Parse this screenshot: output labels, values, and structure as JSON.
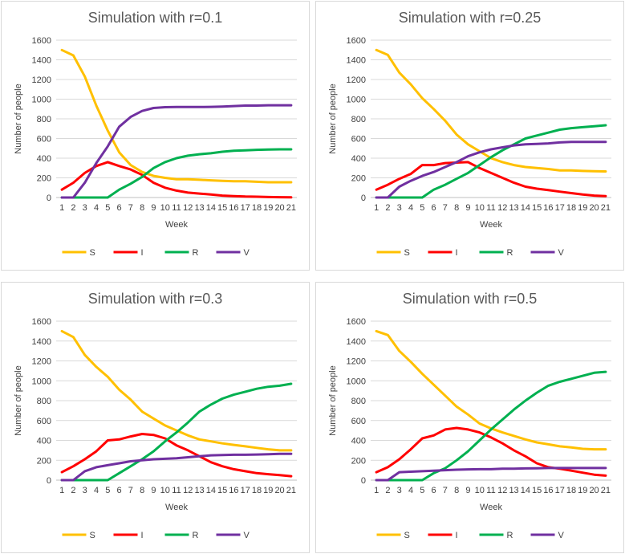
{
  "colors": {
    "S": "#ffc000",
    "I": "#ff0000",
    "R": "#00b050",
    "V": "#7030a0",
    "grid": "#d9d9d9",
    "axis": "#bfbfbf"
  },
  "chart_data": [
    {
      "type": "line",
      "title": "Simulation with r=0.1",
      "xlabel": "Week",
      "ylabel": "Number of people",
      "ylim": [
        0,
        1600
      ],
      "yticks": [
        "0",
        "200",
        "400",
        "600",
        "800",
        "1000",
        "1200",
        "1400",
        "1600"
      ],
      "x": [
        "1",
        "2",
        "3",
        "4",
        "5",
        "6",
        "7",
        "8",
        "9",
        "10",
        "11",
        "12",
        "13",
        "14",
        "15",
        "16",
        "17",
        "18",
        "19",
        "20",
        "21"
      ],
      "legend": "bottom",
      "grid": true,
      "series": [
        {
          "name": "S",
          "values": [
            1500,
            1445,
            1230,
            935,
            680,
            460,
            330,
            260,
            220,
            200,
            185,
            185,
            180,
            175,
            170,
            165,
            165,
            160,
            155,
            155,
            155
          ]
        },
        {
          "name": "I",
          "values": [
            80,
            150,
            250,
            320,
            360,
            320,
            285,
            230,
            150,
            100,
            70,
            50,
            40,
            30,
            20,
            15,
            10,
            8,
            5,
            3,
            2
          ]
        },
        {
          "name": "R",
          "values": [
            0,
            0,
            0,
            0,
            0,
            80,
            140,
            210,
            300,
            360,
            400,
            425,
            440,
            450,
            465,
            475,
            480,
            485,
            488,
            490,
            490
          ]
        },
        {
          "name": "V",
          "values": [
            0,
            0,
            150,
            350,
            520,
            720,
            820,
            880,
            910,
            918,
            920,
            920,
            920,
            922,
            925,
            930,
            935,
            935,
            938,
            938,
            938
          ]
        }
      ]
    },
    {
      "type": "line",
      "title": "Simulation with r=0.25",
      "xlabel": "Week",
      "ylabel": "Number of people",
      "ylim": [
        0,
        1600
      ],
      "yticks": [
        "0",
        "200",
        "400",
        "600",
        "800",
        "1000",
        "1200",
        "1400",
        "1600"
      ],
      "x": [
        "1",
        "2",
        "3",
        "4",
        "5",
        "6",
        "7",
        "8",
        "9",
        "10",
        "11",
        "12",
        "13",
        "14",
        "15",
        "16",
        "17",
        "18",
        "19",
        "20",
        "21"
      ],
      "legend": "bottom",
      "grid": true,
      "series": [
        {
          "name": "S",
          "values": [
            1500,
            1450,
            1270,
            1150,
            1010,
            900,
            780,
            640,
            540,
            470,
            400,
            360,
            330,
            310,
            300,
            290,
            275,
            275,
            270,
            268,
            265
          ]
        },
        {
          "name": "I",
          "values": [
            80,
            130,
            190,
            240,
            330,
            330,
            350,
            355,
            360,
            300,
            250,
            200,
            150,
            110,
            90,
            75,
            60,
            45,
            30,
            20,
            15
          ]
        },
        {
          "name": "R",
          "values": [
            0,
            0,
            0,
            0,
            0,
            80,
            130,
            190,
            250,
            330,
            410,
            480,
            540,
            600,
            630,
            660,
            690,
            705,
            715,
            725,
            735
          ]
        },
        {
          "name": "V",
          "values": [
            0,
            0,
            110,
            170,
            220,
            260,
            310,
            360,
            420,
            460,
            490,
            510,
            530,
            540,
            545,
            550,
            560,
            565,
            565,
            565,
            565
          ]
        }
      ]
    },
    {
      "type": "line",
      "title": "Simulation with r=0.3",
      "xlabel": "Week",
      "ylabel": "Number of people",
      "ylim": [
        0,
        1600
      ],
      "yticks": [
        "0",
        "200",
        "400",
        "600",
        "800",
        "1000",
        "1200",
        "1400",
        "1600"
      ],
      "x": [
        "1",
        "2",
        "3",
        "4",
        "5",
        "6",
        "7",
        "8",
        "9",
        "10",
        "11",
        "12",
        "13",
        "14",
        "15",
        "16",
        "17",
        "18",
        "19",
        "20",
        "21"
      ],
      "legend": "bottom",
      "grid": true,
      "series": [
        {
          "name": "S",
          "values": [
            1500,
            1440,
            1260,
            1140,
            1040,
            910,
            810,
            690,
            620,
            550,
            500,
            450,
            410,
            390,
            370,
            355,
            340,
            325,
            310,
            300,
            300
          ]
        },
        {
          "name": "I",
          "values": [
            80,
            140,
            210,
            290,
            400,
            410,
            440,
            465,
            455,
            420,
            350,
            300,
            240,
            180,
            140,
            110,
            90,
            70,
            60,
            50,
            40
          ]
        },
        {
          "name": "R",
          "values": [
            0,
            0,
            0,
            0,
            0,
            70,
            140,
            210,
            290,
            390,
            480,
            580,
            690,
            760,
            820,
            860,
            890,
            920,
            940,
            950,
            970
          ]
        },
        {
          "name": "V",
          "values": [
            0,
            0,
            90,
            130,
            150,
            170,
            190,
            200,
            210,
            215,
            220,
            230,
            240,
            250,
            252,
            255,
            255,
            258,
            260,
            265,
            265
          ]
        }
      ]
    },
    {
      "type": "line",
      "title": "Simulation with r=0.5",
      "xlabel": "Week",
      "ylabel": "Number of people",
      "ylim": [
        0,
        1600
      ],
      "yticks": [
        "0",
        "200",
        "400",
        "600",
        "800",
        "1000",
        "1200",
        "1400",
        "1600"
      ],
      "x": [
        "1",
        "2",
        "3",
        "4",
        "5",
        "6",
        "7",
        "8",
        "9",
        "10",
        "11",
        "12",
        "13",
        "14",
        "15",
        "16",
        "17",
        "18",
        "19",
        "20",
        "21"
      ],
      "legend": "bottom",
      "grid": true,
      "series": [
        {
          "name": "S",
          "values": [
            1500,
            1460,
            1300,
            1190,
            1070,
            960,
            850,
            740,
            660,
            570,
            520,
            480,
            445,
            410,
            380,
            360,
            340,
            330,
            315,
            310,
            310
          ]
        },
        {
          "name": "I",
          "values": [
            80,
            130,
            210,
            310,
            420,
            450,
            510,
            525,
            510,
            480,
            430,
            370,
            300,
            240,
            170,
            130,
            115,
            95,
            75,
            55,
            45
          ]
        },
        {
          "name": "R",
          "values": [
            0,
            0,
            0,
            0,
            0,
            70,
            120,
            200,
            290,
            400,
            510,
            610,
            710,
            800,
            880,
            950,
            990,
            1020,
            1050,
            1080,
            1090
          ]
        },
        {
          "name": "V",
          "values": [
            0,
            0,
            80,
            85,
            90,
            95,
            100,
            105,
            108,
            110,
            110,
            115,
            115,
            118,
            120,
            122,
            122,
            122,
            122,
            122,
            122
          ]
        }
      ]
    }
  ]
}
